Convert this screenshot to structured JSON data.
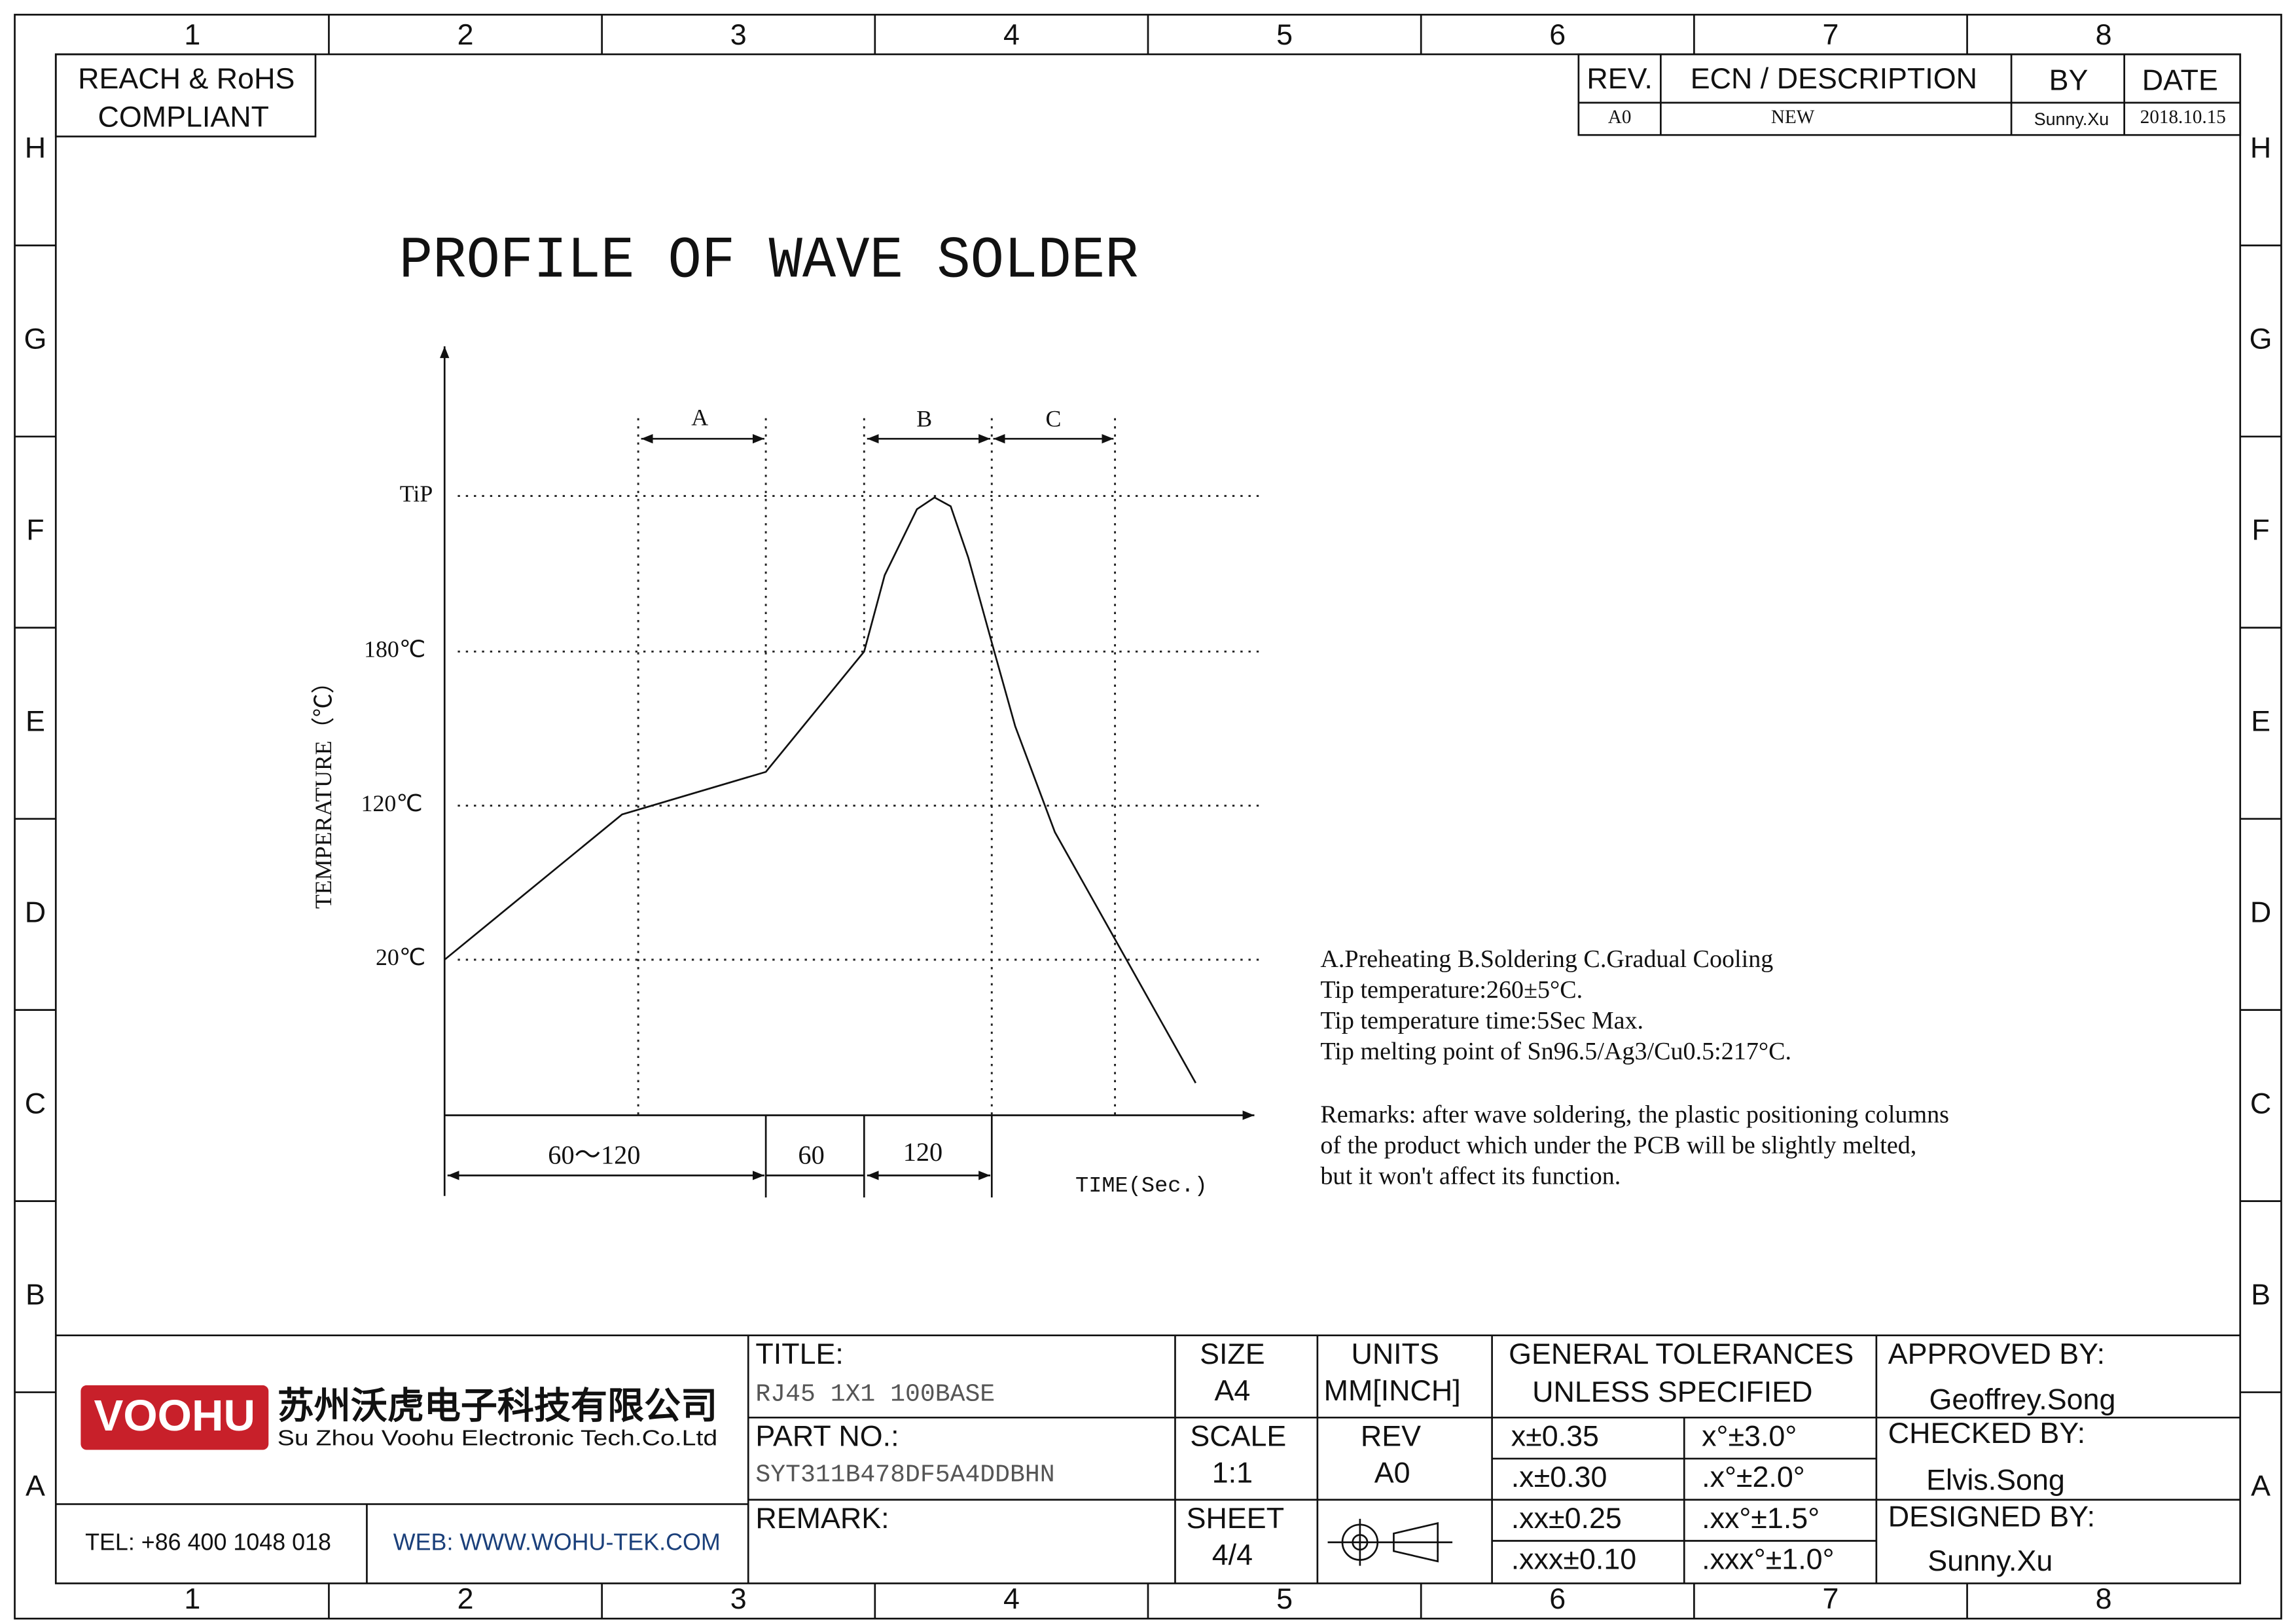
{
  "zones": {
    "columns": [
      "1",
      "2",
      "3",
      "4",
      "5",
      "6",
      "7",
      "8"
    ],
    "rows": [
      "H",
      "G",
      "F",
      "E",
      "D",
      "C",
      "B",
      "A"
    ]
  },
  "compliance": [
    "REACH & RoHS",
    "COMPLIANT"
  ],
  "revision_table": {
    "headers": [
      "REV.",
      "ECN / DESCRIPTION",
      "BY",
      "DATE"
    ],
    "rows": [
      [
        "A0",
        "NEW",
        "Sunny.Xu",
        "2018.10.15"
      ]
    ]
  },
  "title": "PROFILE OF WAVE SOLDER",
  "profile": {
    "y_axis_label": "TEMPERATURE（℃）",
    "x_axis_label": "TIME(Sec.)",
    "levels": [
      "TiP",
      "180℃",
      "120℃",
      "20℃"
    ],
    "zones": [
      "A",
      "B",
      "C"
    ],
    "durations": [
      "60～120",
      "60",
      "120"
    ]
  },
  "notes": [
    "A.Preheating  B.Soldering  C.Gradual Cooling",
    "Tip temperature:260±5°C.",
    "Tip temperature time:5Sec Max.",
    "Tip melting point of Sn96.5/Ag3/Cu0.5:217°C."
  ],
  "remarks": [
    "Remarks: after wave soldering, the plastic positioning columns",
    "of the product  which under the PCB will be slightly melted,",
    "but it won't affect its function."
  ],
  "title_block": {
    "logo": "VOOHU",
    "company_cn": "苏州沃虎电子科技有限公司",
    "company_en": "Su Zhou Voohu Electronic Tech.Co.Ltd",
    "tel": "TEL: +86 400 1048 018",
    "web": "WEB: WWW.WOHU-TEK.COM",
    "title_label": "TITLE:",
    "title_value": "RJ45 1X1 100BASE",
    "part_label": "PART NO.:",
    "part_value": "SYT311B478DF5A4DDBHN",
    "remark_label": "REMARK:",
    "size_label": "SIZE",
    "size_value": "A4",
    "units_label": "UNITS",
    "units_value": "MM[INCH]",
    "scale_label": "SCALE",
    "scale_value": "1:1",
    "rev_label": "REV",
    "rev_value": "A0",
    "sheet_label": "SHEET",
    "sheet_value": "4/4",
    "tolerances_title": [
      "GENERAL TOLERANCES",
      "UNLESS SPECIFIED"
    ],
    "tolerances": [
      [
        "x±0.35",
        "x°±3.0°"
      ],
      [
        ".x±0.30",
        ".x°±2.0°"
      ],
      [
        ".xx±0.25",
        ".xx°±1.5°"
      ],
      [
        ".xxx±0.10",
        ".xxx°±1.0°"
      ]
    ],
    "approved_label": "APPROVED BY:",
    "approved_value": "Geoffrey.Song",
    "checked_label": "CHECKED BY:",
    "checked_value": "Elvis.Song",
    "designed_label": "DESIGNED BY:",
    "designed_value": "Sunny.Xu"
  }
}
